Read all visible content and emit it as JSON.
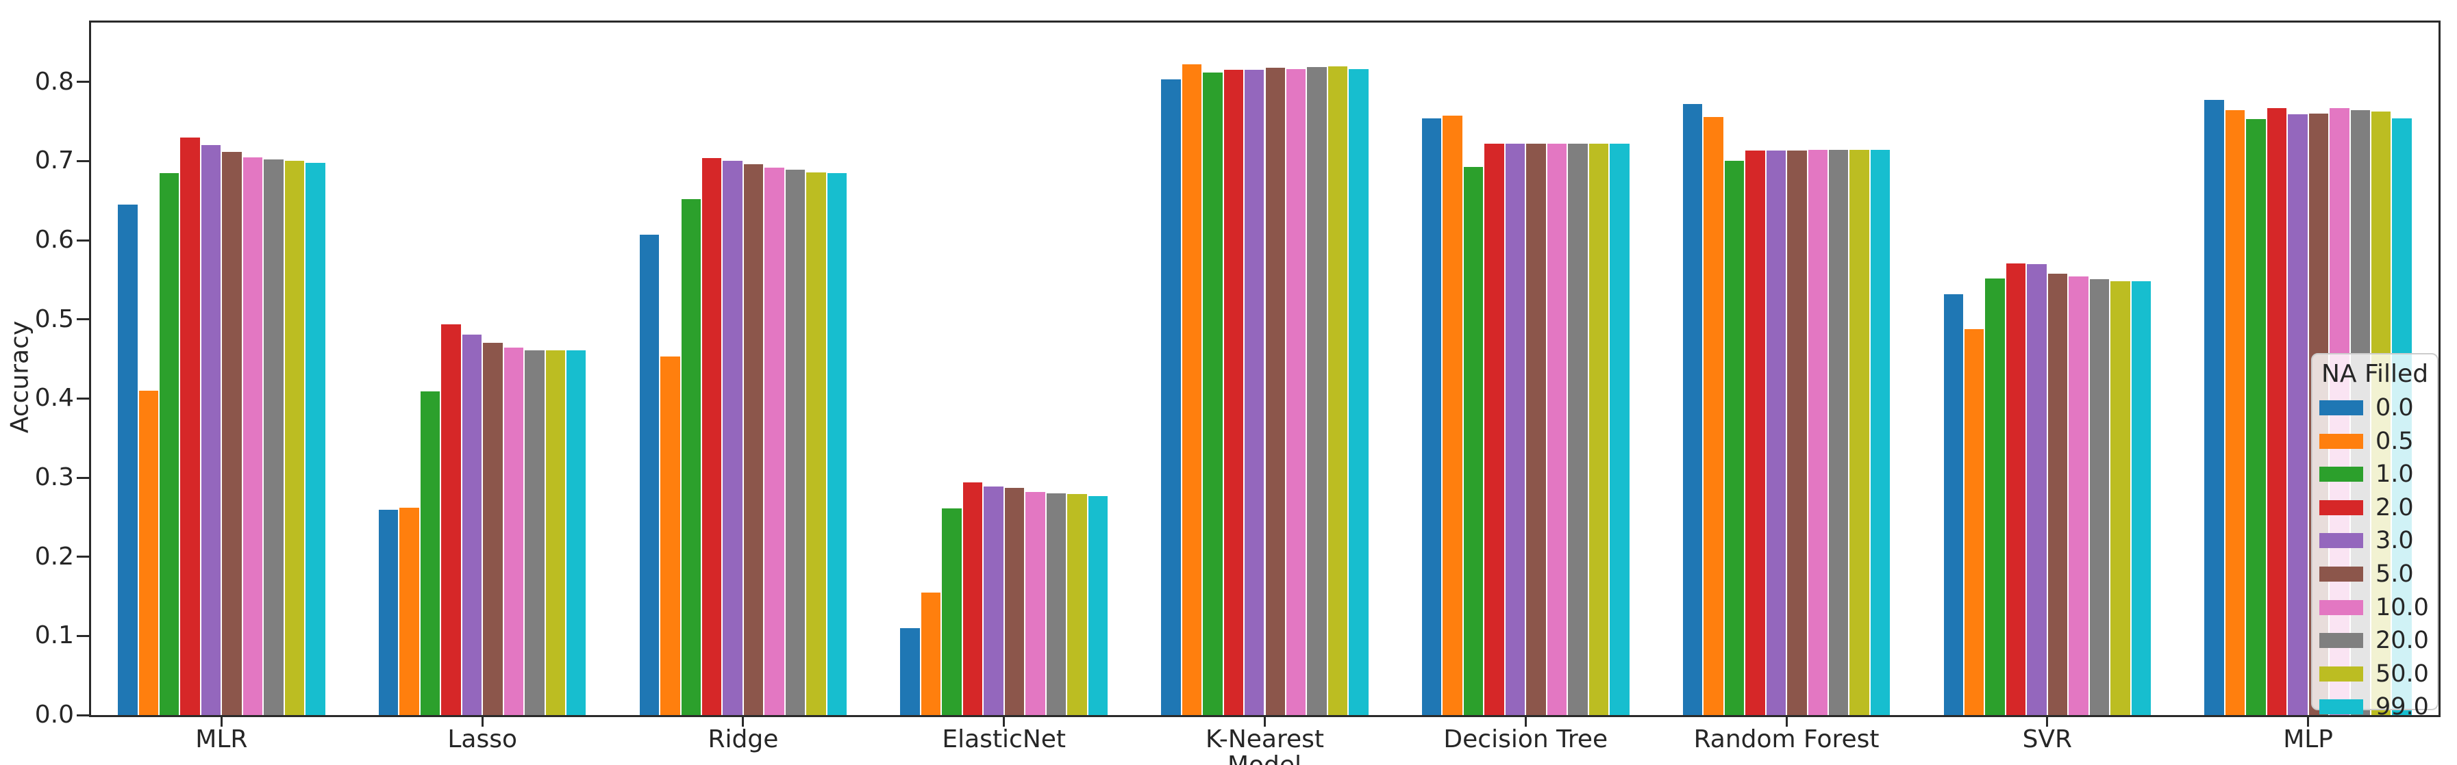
{
  "chart_data": {
    "type": "bar",
    "title": "",
    "xlabel": "Model",
    "ylabel": "Accuracy",
    "ylim": [
      0.0,
      0.875
    ],
    "yticks": [
      "0.0",
      "0.1",
      "0.2",
      "0.3",
      "0.4",
      "0.5",
      "0.6",
      "0.7",
      "0.8"
    ],
    "grid": false,
    "legend_title": "NA Filled",
    "legend_position": "right",
    "categories": [
      "MLR",
      "Lasso",
      "Ridge",
      "ElasticNet",
      "K-Nearest",
      "Decision Tree",
      "Random Forest",
      "SVR",
      "MLP"
    ],
    "series": [
      {
        "name": "0.0",
        "color": "#1f77b4",
        "values": [
          0.645,
          0.259,
          0.607,
          0.11,
          0.803,
          0.754,
          0.772,
          0.532,
          0.777
        ]
      },
      {
        "name": "0.5",
        "color": "#ff7f0e",
        "values": [
          0.41,
          0.262,
          0.453,
          0.155,
          0.822,
          0.757,
          0.756,
          0.488,
          0.764
        ]
      },
      {
        "name": "1.0",
        "color": "#2ca02c",
        "values": [
          0.685,
          0.409,
          0.652,
          0.261,
          0.812,
          0.693,
          0.7,
          0.552,
          0.753
        ]
      },
      {
        "name": "2.0",
        "color": "#d62728",
        "values": [
          0.73,
          0.494,
          0.704,
          0.294,
          0.815,
          0.722,
          0.713,
          0.571,
          0.767
        ]
      },
      {
        "name": "3.0",
        "color": "#9467bd",
        "values": [
          0.72,
          0.481,
          0.7,
          0.289,
          0.815,
          0.722,
          0.713,
          0.57,
          0.759
        ]
      },
      {
        "name": "5.0",
        "color": "#8c564b",
        "values": [
          0.712,
          0.47,
          0.696,
          0.287,
          0.818,
          0.722,
          0.713,
          0.558,
          0.76
        ]
      },
      {
        "name": "10.0",
        "color": "#e377c2",
        "values": [
          0.705,
          0.464,
          0.692,
          0.282,
          0.816,
          0.722,
          0.714,
          0.554,
          0.767
        ]
      },
      {
        "name": "20.0",
        "color": "#7f7f7f",
        "values": [
          0.702,
          0.461,
          0.689,
          0.28,
          0.819,
          0.722,
          0.714,
          0.551,
          0.764
        ]
      },
      {
        "name": "50.0",
        "color": "#bcbd22",
        "values": [
          0.7,
          0.461,
          0.686,
          0.279,
          0.82,
          0.722,
          0.714,
          0.548,
          0.763
        ]
      },
      {
        "name": "99.0",
        "color": "#17becf",
        "values": [
          0.698,
          0.461,
          0.685,
          0.277,
          0.816,
          0.722,
          0.714,
          0.548,
          0.754
        ]
      }
    ]
  }
}
